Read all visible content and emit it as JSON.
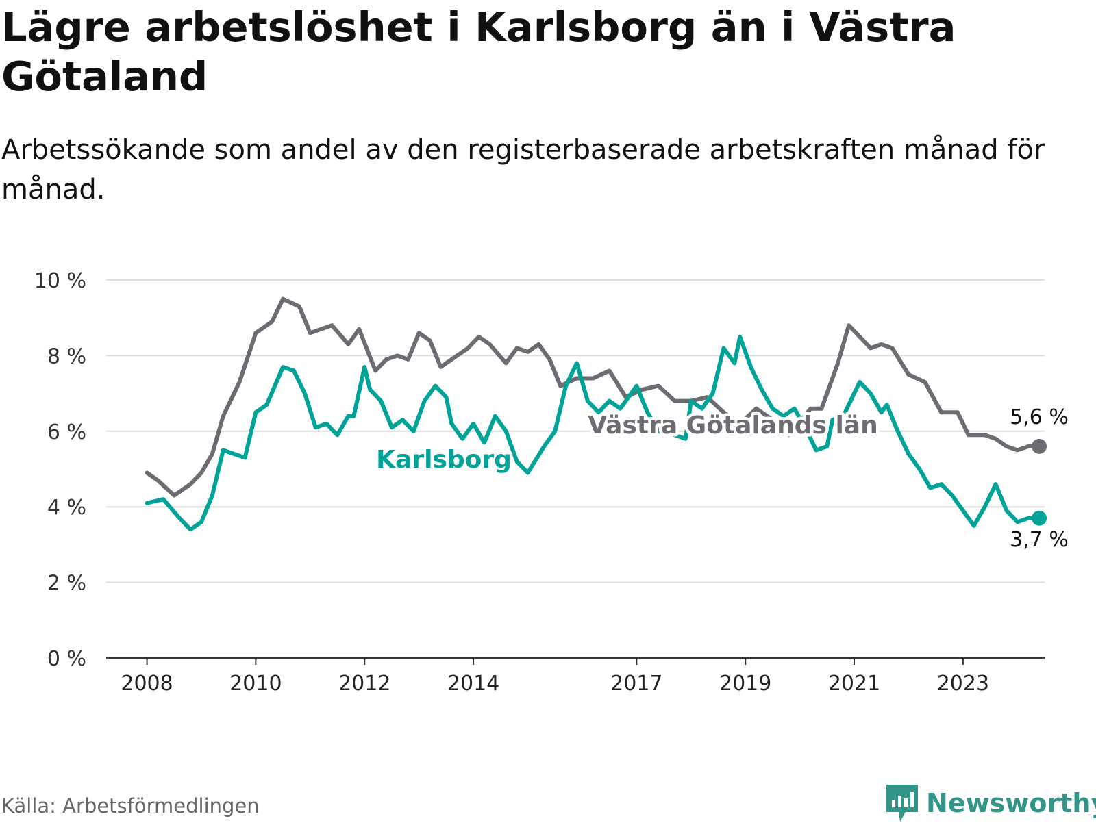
{
  "title": "Lägre arbetslöshet i Karlsborg än i Västra Götaland",
  "subtitle": "Arbetssökande som andel av den registerbaserade arbetskraften månad för månad.",
  "source": "Källa: Arbetsförmedlingen",
  "brand": "Newsworthy",
  "colors": {
    "karlsborg": "#00a398",
    "vastra_gotaland": "#6d6c72",
    "grid": "#dddddd",
    "axis": "#333333",
    "brand": "#33958a"
  },
  "chart_data": {
    "type": "line",
    "title": "Lägre arbetslöshet i Karlsborg än i Västra Götaland",
    "xlabel": "",
    "ylabel": "",
    "ylim": [
      0,
      10
    ],
    "xlim": [
      2007.25,
      2024.5
    ],
    "y_ticks": [
      0,
      2,
      4,
      6,
      8,
      10
    ],
    "y_tick_labels": [
      "0 %",
      "2 %",
      "4 %",
      "6 %",
      "8 %",
      "10 %"
    ],
    "x_ticks": [
      2008,
      2010,
      2012,
      2014,
      2017,
      2019,
      2021,
      2023
    ],
    "x_tick_labels": [
      "2008",
      "2010",
      "2012",
      "2014",
      "2017",
      "2019",
      "2021",
      "2023"
    ],
    "grid": true,
    "series": [
      {
        "name": "Västra Götalands län",
        "key": "vastra_gotaland",
        "end_label": "5,6 %",
        "points": [
          [
            2008.0,
            4.9
          ],
          [
            2008.2,
            4.7
          ],
          [
            2008.5,
            4.3
          ],
          [
            2008.8,
            4.6
          ],
          [
            2009.0,
            4.9
          ],
          [
            2009.2,
            5.4
          ],
          [
            2009.4,
            6.4
          ],
          [
            2009.7,
            7.3
          ],
          [
            2010.0,
            8.6
          ],
          [
            2010.3,
            8.9
          ],
          [
            2010.5,
            9.5
          ],
          [
            2010.8,
            9.3
          ],
          [
            2011.0,
            8.6
          ],
          [
            2011.4,
            8.8
          ],
          [
            2011.7,
            8.3
          ],
          [
            2011.9,
            8.7
          ],
          [
            2012.2,
            7.6
          ],
          [
            2012.4,
            7.9
          ],
          [
            2012.6,
            8.0
          ],
          [
            2012.8,
            7.9
          ],
          [
            2013.0,
            8.6
          ],
          [
            2013.2,
            8.4
          ],
          [
            2013.4,
            7.7
          ],
          [
            2013.7,
            8.0
          ],
          [
            2013.9,
            8.2
          ],
          [
            2014.1,
            8.5
          ],
          [
            2014.3,
            8.3
          ],
          [
            2014.6,
            7.8
          ],
          [
            2014.8,
            8.2
          ],
          [
            2015.0,
            8.1
          ],
          [
            2015.2,
            8.3
          ],
          [
            2015.4,
            7.9
          ],
          [
            2015.6,
            7.2
          ],
          [
            2015.9,
            7.4
          ],
          [
            2016.2,
            7.4
          ],
          [
            2016.5,
            7.6
          ],
          [
            2016.8,
            6.9
          ],
          [
            2017.1,
            7.1
          ],
          [
            2017.4,
            7.2
          ],
          [
            2017.7,
            6.8
          ],
          [
            2018.0,
            6.8
          ],
          [
            2018.3,
            6.9
          ],
          [
            2018.6,
            6.5
          ],
          [
            2018.9,
            6.2
          ],
          [
            2019.2,
            6.6
          ],
          [
            2019.5,
            6.3
          ],
          [
            2019.8,
            5.9
          ],
          [
            2020.2,
            6.6
          ],
          [
            2020.4,
            6.6
          ],
          [
            2020.7,
            7.8
          ],
          [
            2020.9,
            8.8
          ],
          [
            2021.1,
            8.5
          ],
          [
            2021.3,
            8.2
          ],
          [
            2021.5,
            8.3
          ],
          [
            2021.7,
            8.2
          ],
          [
            2022.0,
            7.5
          ],
          [
            2022.3,
            7.3
          ],
          [
            2022.6,
            6.5
          ],
          [
            2022.9,
            6.5
          ],
          [
            2023.1,
            5.9
          ],
          [
            2023.4,
            5.9
          ],
          [
            2023.6,
            5.8
          ],
          [
            2023.8,
            5.6
          ],
          [
            2024.0,
            5.5
          ],
          [
            2024.2,
            5.6
          ],
          [
            2024.4,
            5.6
          ]
        ]
      },
      {
        "name": "Karlsborg",
        "key": "karlsborg",
        "end_label": "3,7 %",
        "points": [
          [
            2008.0,
            4.1
          ],
          [
            2008.3,
            4.2
          ],
          [
            2008.6,
            3.7
          ],
          [
            2008.8,
            3.4
          ],
          [
            2009.0,
            3.6
          ],
          [
            2009.2,
            4.3
          ],
          [
            2009.4,
            5.5
          ],
          [
            2009.6,
            5.4
          ],
          [
            2009.8,
            5.3
          ],
          [
            2010.0,
            6.5
          ],
          [
            2010.2,
            6.7
          ],
          [
            2010.5,
            7.7
          ],
          [
            2010.7,
            7.6
          ],
          [
            2010.9,
            7.0
          ],
          [
            2011.1,
            6.1
          ],
          [
            2011.3,
            6.2
          ],
          [
            2011.5,
            5.9
          ],
          [
            2011.7,
            6.4
          ],
          [
            2011.8,
            6.4
          ],
          [
            2012.0,
            7.7
          ],
          [
            2012.1,
            7.1
          ],
          [
            2012.3,
            6.8
          ],
          [
            2012.5,
            6.1
          ],
          [
            2012.7,
            6.3
          ],
          [
            2012.9,
            6.0
          ],
          [
            2013.1,
            6.8
          ],
          [
            2013.3,
            7.2
          ],
          [
            2013.5,
            6.9
          ],
          [
            2013.6,
            6.2
          ],
          [
            2013.8,
            5.8
          ],
          [
            2014.0,
            6.2
          ],
          [
            2014.2,
            5.7
          ],
          [
            2014.4,
            6.4
          ],
          [
            2014.6,
            6.0
          ],
          [
            2014.8,
            5.2
          ],
          [
            2015.0,
            4.9
          ],
          [
            2015.3,
            5.6
          ],
          [
            2015.5,
            6.0
          ],
          [
            2015.7,
            7.2
          ],
          [
            2015.9,
            7.8
          ],
          [
            2016.1,
            6.8
          ],
          [
            2016.3,
            6.5
          ],
          [
            2016.5,
            6.8
          ],
          [
            2016.7,
            6.6
          ],
          [
            2017.0,
            7.2
          ],
          [
            2017.2,
            6.5
          ],
          [
            2017.4,
            6.0
          ],
          [
            2017.7,
            5.9
          ],
          [
            2017.9,
            5.8
          ],
          [
            2018.0,
            6.8
          ],
          [
            2018.2,
            6.6
          ],
          [
            2018.4,
            7.0
          ],
          [
            2018.6,
            8.2
          ],
          [
            2018.8,
            7.8
          ],
          [
            2018.9,
            8.5
          ],
          [
            2019.1,
            7.7
          ],
          [
            2019.3,
            7.1
          ],
          [
            2019.5,
            6.6
          ],
          [
            2019.7,
            6.4
          ],
          [
            2019.9,
            6.6
          ],
          [
            2020.1,
            6.1
          ],
          [
            2020.3,
            5.5
          ],
          [
            2020.5,
            5.6
          ],
          [
            2020.6,
            6.3
          ],
          [
            2020.8,
            6.4
          ],
          [
            2021.0,
            7.0
          ],
          [
            2021.1,
            7.3
          ],
          [
            2021.3,
            7.0
          ],
          [
            2021.5,
            6.5
          ],
          [
            2021.6,
            6.7
          ],
          [
            2021.8,
            6.0
          ],
          [
            2022.0,
            5.4
          ],
          [
            2022.2,
            5.0
          ],
          [
            2022.4,
            4.5
          ],
          [
            2022.6,
            4.6
          ],
          [
            2022.8,
            4.3
          ],
          [
            2023.0,
            3.9
          ],
          [
            2023.2,
            3.5
          ],
          [
            2023.4,
            4.0
          ],
          [
            2023.6,
            4.6
          ],
          [
            2023.8,
            3.9
          ],
          [
            2024.0,
            3.6
          ],
          [
            2024.2,
            3.7
          ],
          [
            2024.4,
            3.7
          ]
        ]
      }
    ],
    "annotations": [
      {
        "series": "Karlsborg",
        "text": "Karlsborg"
      },
      {
        "series": "Västra Götalands län",
        "text": "Västra Götalands län"
      }
    ]
  }
}
